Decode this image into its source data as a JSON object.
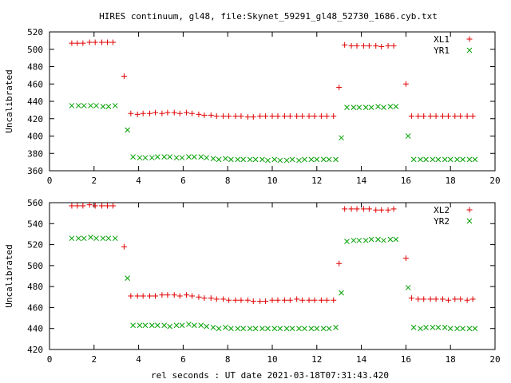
{
  "chart_data": [
    {
      "type": "scatter",
      "title": "HIRES continuum, gl48, file:Skynet_59291_gl48_52730_1686.cyb.txt",
      "xlabel": "",
      "ylabel": "Uncalibrated",
      "xlim": [
        0,
        20
      ],
      "ylim": [
        360,
        520
      ],
      "xticks": [
        "0",
        "2",
        "4",
        "6",
        "8",
        "10",
        "12",
        "14",
        "16",
        "18",
        "20"
      ],
      "yticks": [
        "360",
        "380",
        "400",
        "420",
        "440",
        "460",
        "480",
        "500",
        "520"
      ],
      "legend_position": "top-right",
      "series": [
        {
          "name": "XL1",
          "marker": "plus",
          "color": "#e00000",
          "x": [
            1.0,
            1.25,
            1.5,
            1.8,
            2.05,
            2.35,
            2.6,
            2.85,
            3.1,
            3.35,
            3.65,
            3.95,
            4.2,
            4.5,
            4.75,
            5.05,
            5.3,
            5.6,
            5.85,
            6.15,
            6.4,
            6.7,
            6.95,
            7.25,
            7.5,
            7.8,
            8.05,
            8.35,
            8.6,
            8.9,
            9.15,
            9.45,
            9.7,
            10.0,
            10.25,
            10.55,
            10.8,
            11.1,
            11.35,
            11.65,
            11.9,
            12.2,
            12.45,
            12.75,
            13.0,
            13.25,
            13.55,
            13.8,
            14.1,
            14.35,
            14.65,
            14.9,
            15.2,
            15.45,
            15.75,
            16.0,
            16.25,
            16.55,
            16.8,
            17.1,
            17.35,
            17.65,
            17.9,
            18.2,
            18.45,
            18.75,
            19.0
          ],
          "y": [
            507,
            507,
            507,
            508,
            508,
            508,
            508,
            508,
            null,
            469,
            426,
            425,
            426,
            426,
            427,
            426,
            427,
            427,
            426,
            427,
            426,
            425,
            424,
            424,
            423,
            423,
            423,
            423,
            423,
            422,
            422,
            423,
            423,
            423,
            423,
            423,
            423,
            423,
            423,
            423,
            423,
            423,
            423,
            423,
            456,
            505,
            504,
            504,
            504,
            504,
            504,
            503,
            504,
            504,
            null,
            460,
            423,
            423,
            423,
            423,
            423,
            423,
            423,
            423,
            423,
            423,
            423
          ]
        },
        {
          "name": "YR1",
          "marker": "cross",
          "color": "#00a000",
          "x": [
            1.0,
            1.3,
            1.55,
            1.85,
            2.1,
            2.4,
            2.65,
            2.95,
            3.2,
            3.5,
            3.75,
            4.05,
            4.3,
            4.6,
            4.85,
            5.15,
            5.4,
            5.7,
            5.95,
            6.25,
            6.5,
            6.8,
            7.05,
            7.35,
            7.6,
            7.9,
            8.15,
            8.45,
            8.7,
            9.0,
            9.25,
            9.55,
            9.8,
            10.1,
            10.35,
            10.65,
            10.9,
            11.2,
            11.45,
            11.75,
            12.0,
            12.3,
            12.55,
            12.85,
            13.1,
            13.35,
            13.65,
            13.9,
            14.2,
            14.45,
            14.75,
            15.0,
            15.3,
            15.55,
            15.85,
            16.1,
            16.35,
            16.65,
            16.9,
            17.2,
            17.45,
            17.75,
            18.0,
            18.3,
            18.55,
            18.85,
            19.1
          ],
          "y": [
            435,
            435,
            435,
            435,
            435,
            434,
            434,
            435,
            null,
            407,
            376,
            375,
            375,
            375,
            376,
            376,
            376,
            375,
            375,
            376,
            376,
            376,
            375,
            374,
            373,
            374,
            373,
            373,
            373,
            373,
            373,
            373,
            372,
            373,
            372,
            372,
            373,
            372,
            373,
            373,
            373,
            373,
            373,
            373,
            398,
            433,
            433,
            433,
            433,
            433,
            434,
            433,
            434,
            434,
            null,
            400,
            373,
            373,
            373,
            373,
            373,
            373,
            373,
            373,
            373,
            373,
            373
          ]
        }
      ]
    },
    {
      "type": "scatter",
      "title": "",
      "xlabel": "rel seconds : UT date 2021-03-18T07:31:43.420",
      "ylabel": "Uncalibrated",
      "xlim": [
        0,
        20
      ],
      "ylim": [
        420,
        560
      ],
      "xticks": [
        "0",
        "2",
        "4",
        "6",
        "8",
        "10",
        "12",
        "14",
        "16",
        "18",
        "20"
      ],
      "yticks": [
        "420",
        "440",
        "460",
        "480",
        "500",
        "520",
        "540",
        "560"
      ],
      "legend_position": "top-right",
      "series": [
        {
          "name": "XL2",
          "marker": "plus",
          "color": "#e00000",
          "x": [
            1.0,
            1.25,
            1.5,
            1.8,
            2.05,
            2.35,
            2.6,
            2.85,
            3.1,
            3.35,
            3.65,
            3.95,
            4.2,
            4.5,
            4.75,
            5.05,
            5.3,
            5.6,
            5.85,
            6.15,
            6.4,
            6.7,
            6.95,
            7.25,
            7.5,
            7.8,
            8.05,
            8.35,
            8.6,
            8.9,
            9.15,
            9.45,
            9.7,
            10.0,
            10.25,
            10.55,
            10.8,
            11.1,
            11.35,
            11.65,
            11.9,
            12.2,
            12.45,
            12.75,
            13.0,
            13.25,
            13.55,
            13.8,
            14.1,
            14.35,
            14.65,
            14.9,
            15.2,
            15.45,
            15.75,
            16.0,
            16.25,
            16.55,
            16.8,
            17.1,
            17.35,
            17.65,
            17.9,
            18.2,
            18.45,
            18.75,
            19.0
          ],
          "y": [
            557,
            557,
            557,
            558,
            557,
            557,
            557,
            557,
            null,
            518,
            471,
            471,
            471,
            471,
            471,
            472,
            472,
            472,
            471,
            472,
            471,
            470,
            469,
            469,
            468,
            468,
            467,
            467,
            467,
            467,
            466,
            466,
            466,
            467,
            467,
            467,
            467,
            468,
            467,
            467,
            467,
            467,
            467,
            467,
            502,
            554,
            554,
            554,
            554,
            554,
            553,
            553,
            553,
            554,
            null,
            507,
            469,
            468,
            468,
            468,
            468,
            468,
            467,
            468,
            468,
            467,
            468
          ]
        },
        {
          "name": "YR2",
          "marker": "cross",
          "color": "#00a000",
          "x": [
            1.0,
            1.3,
            1.55,
            1.85,
            2.1,
            2.4,
            2.65,
            2.95,
            3.2,
            3.5,
            3.75,
            4.05,
            4.3,
            4.6,
            4.85,
            5.15,
            5.4,
            5.7,
            5.95,
            6.25,
            6.5,
            6.8,
            7.05,
            7.35,
            7.6,
            7.9,
            8.15,
            8.45,
            8.7,
            9.0,
            9.25,
            9.55,
            9.8,
            10.1,
            10.35,
            10.65,
            10.9,
            11.2,
            11.45,
            11.75,
            12.0,
            12.3,
            12.55,
            12.85,
            13.1,
            13.35,
            13.65,
            13.9,
            14.2,
            14.45,
            14.75,
            15.0,
            15.3,
            15.55,
            15.85,
            16.1,
            16.35,
            16.65,
            16.9,
            17.2,
            17.45,
            17.75,
            18.0,
            18.3,
            18.55,
            18.85,
            19.1
          ],
          "y": [
            526,
            526,
            526,
            527,
            526,
            526,
            526,
            526,
            null,
            488,
            443,
            443,
            443,
            443,
            443,
            443,
            442,
            443,
            443,
            444,
            443,
            443,
            442,
            441,
            440,
            441,
            440,
            440,
            440,
            440,
            440,
            440,
            440,
            440,
            440,
            440,
            440,
            440,
            440,
            440,
            440,
            440,
            440,
            441,
            474,
            523,
            524,
            524,
            524,
            525,
            525,
            524,
            525,
            525,
            null,
            479,
            441,
            440,
            441,
            441,
            441,
            441,
            440,
            440,
            440,
            440,
            440
          ]
        }
      ]
    }
  ]
}
